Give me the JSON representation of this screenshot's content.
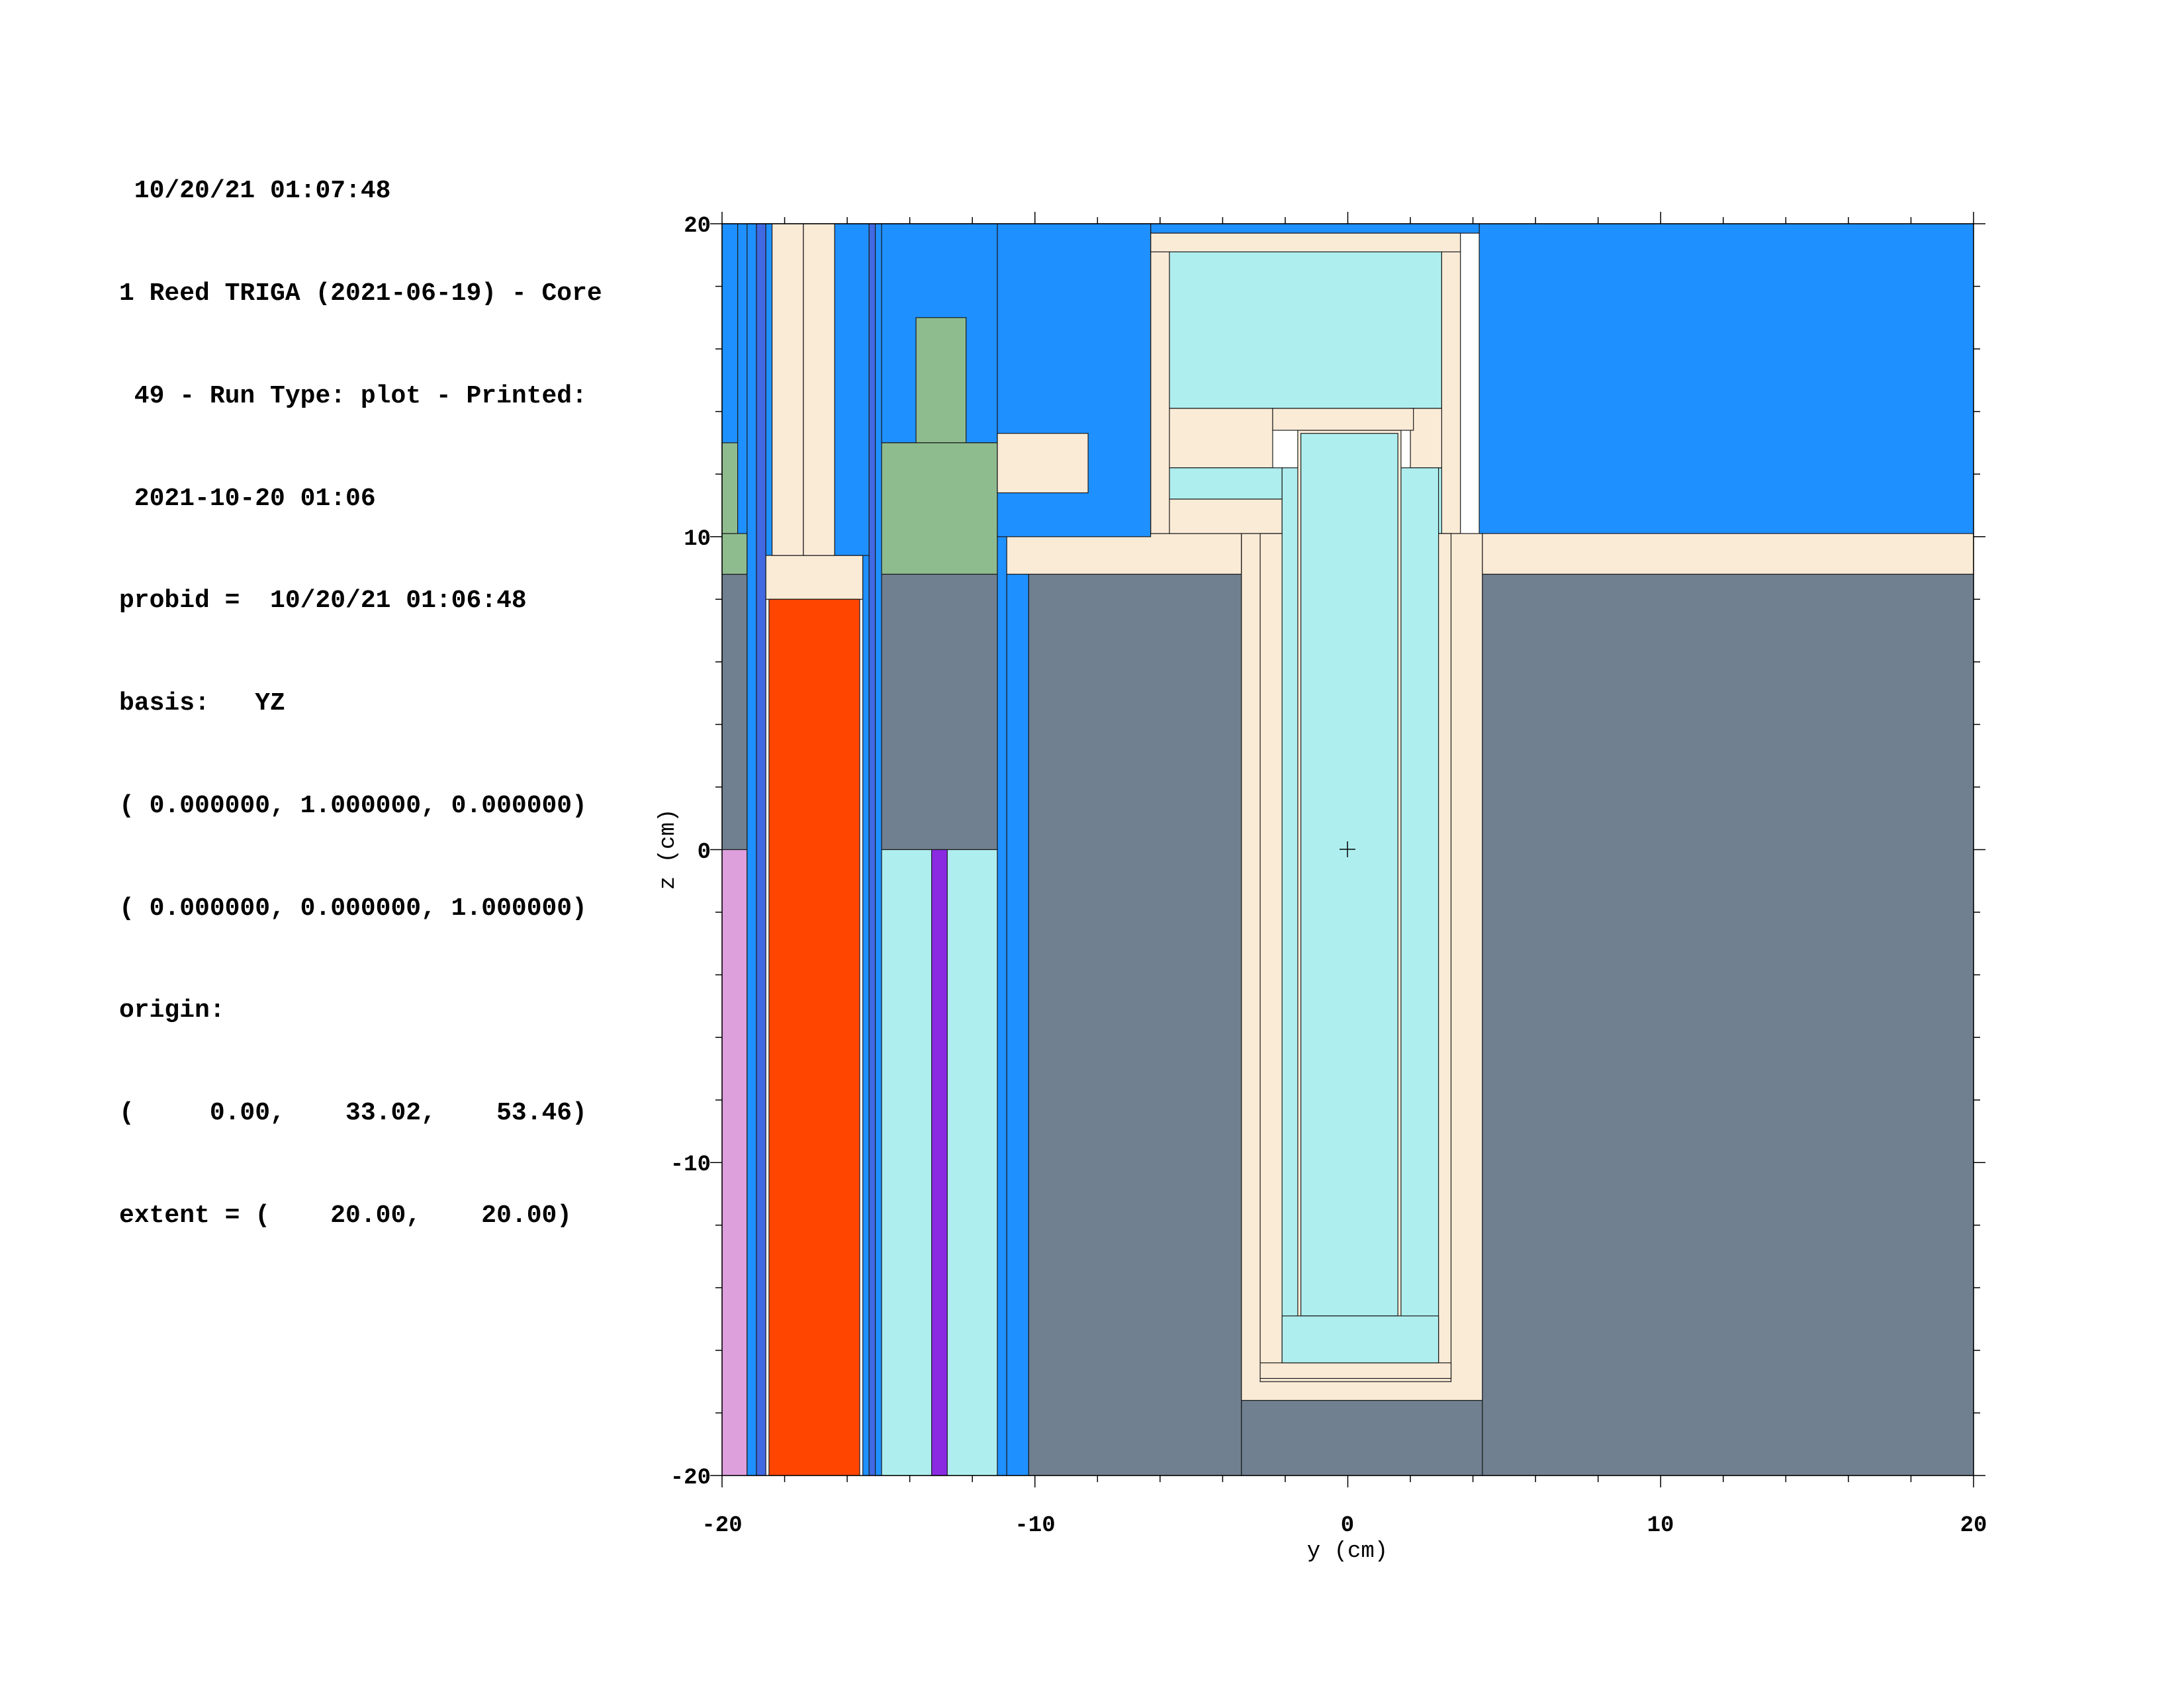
{
  "header_lines": [
    " 10/20/21 01:07:48",
    "1 Reed TRIGA (2021-06-19) - Core",
    " 49 - Run Type: plot - Printed:",
    " 2021-10-20 01:06",
    "probid =  10/20/21 01:06:48",
    "basis:   YZ",
    "( 0.000000, 1.000000, 0.000000)",
    "( 0.000000, 0.000000, 1.000000)",
    "origin:",
    "(     0.00,    33.02,    53.46)",
    "extent = (    20.00,    20.00)"
  ],
  "axes": {
    "x_label": "y (cm)",
    "y_label": "z (cm)",
    "x_range": [
      -20,
      20
    ],
    "y_range": [
      -20,
      20
    ],
    "x_ticks": [
      "-20",
      "-10",
      "0",
      "10",
      "20"
    ],
    "y_ticks": [
      "20",
      "10",
      "0",
      "-10",
      "-20"
    ]
  },
  "colors": {
    "water": "#1e90ff",
    "clad": "#faebd7",
    "graphite": "#708090",
    "light_water": "#afeeee",
    "green": "#8fbc8f",
    "fuel": "#ff4500",
    "violet": "#8a2be2",
    "plum": "#dda0dd",
    "steel_blue": "#4169e1"
  },
  "regions": [
    {
      "m": "water",
      "y": [
        -20,
        -6.3
      ],
      "z": [
        10,
        20
      ]
    },
    {
      "m": "water",
      "y": [
        4.2,
        20
      ],
      "z": [
        10,
        20
      ]
    },
    {
      "m": "water",
      "y": [
        -6.3,
        4.2
      ],
      "z": [
        19.7,
        20
      ]
    },
    {
      "m": "clad",
      "y": [
        -11.2,
        -3.4
      ],
      "z": [
        8.8,
        10.1
      ]
    },
    {
      "m": "clad",
      "y": [
        4.3,
        20
      ],
      "z": [
        8.8,
        10.1
      ]
    },
    {
      "m": "graphite",
      "y": [
        -10.2,
        -3.4
      ],
      "z": [
        -20,
        8.8
      ]
    },
    {
      "m": "graphite",
      "y": [
        4.3,
        20
      ],
      "z": [
        -20,
        8.8
      ]
    },
    {
      "m": "graphite",
      "y": [
        -3.4,
        4.3
      ],
      "z": [
        -20,
        -17.6
      ]
    },
    {
      "m": "clad",
      "y": [
        -6.3,
        3.6
      ],
      "z": [
        19.1,
        19.7
      ]
    },
    {
      "m": "clad",
      "y": [
        -6.3,
        -5.7
      ],
      "z": [
        10.1,
        19.1
      ]
    },
    {
      "m": "clad",
      "y": [
        3,
        3.6
      ],
      "z": [
        10.1,
        19.1
      ]
    },
    {
      "m": "light_water",
      "y": [
        -5.7,
        3
      ],
      "z": [
        14.1,
        19.1
      ]
    },
    {
      "m": "clad",
      "y": [
        -5.7,
        -2.4
      ],
      "z": [
        12.2,
        14.1
      ]
    },
    {
      "m": "light_water",
      "y": [
        -5.7,
        -2.1
      ],
      "z": [
        11.2,
        12.2
      ]
    },
    {
      "m": "clad",
      "y": [
        -5.7,
        -2.1
      ],
      "z": [
        10.1,
        11.2
      ]
    },
    {
      "m": "light_water",
      "y": [
        2,
        3
      ],
      "z": [
        10.1,
        12.2
      ]
    },
    {
      "m": "clad",
      "y": [
        2,
        3
      ],
      "z": [
        12.2,
        14.1
      ]
    },
    {
      "m": "clad",
      "y": [
        -3.4,
        4.3
      ],
      "z": [
        -17.6,
        10.1
      ]
    },
    {
      "m": "clad",
      "y": [
        -2.8,
        3.3
      ],
      "z": [
        -17,
        10.1
      ]
    },
    {
      "m": "light_water",
      "y": [
        -2.1,
        2.9
      ],
      "z": [
        -16.4,
        12.2
      ]
    },
    {
      "m": "clad",
      "y": [
        -1.6,
        1.7
      ],
      "z": [
        -15.3,
        13.4
      ]
    },
    {
      "m": "light_water",
      "y": [
        -1.5,
        1.6
      ],
      "z": [
        -14.9,
        13.3
      ]
    },
    {
      "m": "clad",
      "y": [
        -2.4,
        2.1
      ],
      "z": [
        13.4,
        14.1
      ]
    },
    {
      "m": "clad",
      "y": [
        -2.8,
        3.3
      ],
      "z": [
        -16.9,
        -16.4
      ]
    },
    {
      "m": "light_water",
      "y": [
        -2.1,
        2.9
      ],
      "z": [
        -16.4,
        -14.9
      ]
    },
    {
      "m": "graphite",
      "y": [
        -20,
        -19.2
      ],
      "z": [
        0,
        8.8
      ]
    },
    {
      "m": "green",
      "y": [
        -20,
        -19.2
      ],
      "z": [
        8.8,
        10.1
      ]
    },
    {
      "m": "green",
      "y": [
        -20,
        -19.5
      ],
      "z": [
        10.1,
        13
      ]
    },
    {
      "m": "water",
      "y": [
        -20,
        -19.5
      ],
      "z": [
        13,
        20
      ]
    },
    {
      "m": "plum",
      "y": [
        -20,
        -19.2
      ],
      "z": [
        -20,
        0
      ]
    },
    {
      "m": "water",
      "y": [
        -19.2,
        -18.9
      ],
      "z": [
        -20,
        20
      ]
    },
    {
      "m": "steel_blue",
      "y": [
        -18.9,
        -18.6
      ],
      "z": [
        -20,
        20
      ]
    },
    {
      "m": "water",
      "y": [
        -18.6,
        -18.4
      ],
      "z": [
        9.4,
        20
      ]
    },
    {
      "m": "clad",
      "y": [
        -18.6,
        -15.5
      ],
      "z": [
        8,
        9.4
      ]
    },
    {
      "m": "fuel",
      "y": [
        -18.5,
        -15.6
      ],
      "z": [
        -20,
        8
      ]
    },
    {
      "m": "clad",
      "y": [
        -18.4,
        -17.4
      ],
      "z": [
        9.4,
        20
      ]
    },
    {
      "m": "clad",
      "y": [
        -17.4,
        -16.4
      ],
      "z": [
        9.4,
        20
      ]
    },
    {
      "m": "water",
      "y": [
        -16.4,
        -15.3
      ],
      "z": [
        9.4,
        20
      ]
    },
    {
      "m": "water",
      "y": [
        -15.5,
        -15.3
      ],
      "z": [
        -20,
        9.4
      ]
    },
    {
      "m": "steel_blue",
      "y": [
        -15.3,
        -15.1
      ],
      "z": [
        -20,
        20
      ]
    },
    {
      "m": "water",
      "y": [
        -15.1,
        -14.9
      ],
      "z": [
        -20,
        20
      ]
    },
    {
      "m": "water",
      "y": [
        -14.9,
        -11.2
      ],
      "z": [
        13,
        20
      ]
    },
    {
      "m": "green",
      "y": [
        -13.8,
        -12.2
      ],
      "z": [
        13,
        17
      ]
    },
    {
      "m": "green",
      "y": [
        -14.9,
        -11.2
      ],
      "z": [
        8.8,
        13
      ]
    },
    {
      "m": "graphite",
      "y": [
        -14.9,
        -11.2
      ],
      "z": [
        0,
        8.8
      ]
    },
    {
      "m": "light_water",
      "y": [
        -14.9,
        -11.2
      ],
      "z": [
        -20,
        0
      ]
    },
    {
      "m": "violet",
      "y": [
        -13.3,
        -12.8
      ],
      "z": [
        -20,
        0
      ]
    },
    {
      "m": "water",
      "y": [
        -11.2,
        -10.9
      ],
      "z": [
        -20,
        10.1
      ]
    },
    {
      "m": "water",
      "y": [
        -11.2,
        -6.3
      ],
      "z": [
        10,
        20
      ]
    },
    {
      "m": "clad",
      "y": [
        -11.2,
        -8.3
      ],
      "z": [
        11.4,
        13.3
      ]
    },
    {
      "m": "water",
      "y": [
        -10.9,
        -10.2
      ],
      "z": [
        -20,
        8.8
      ]
    }
  ]
}
